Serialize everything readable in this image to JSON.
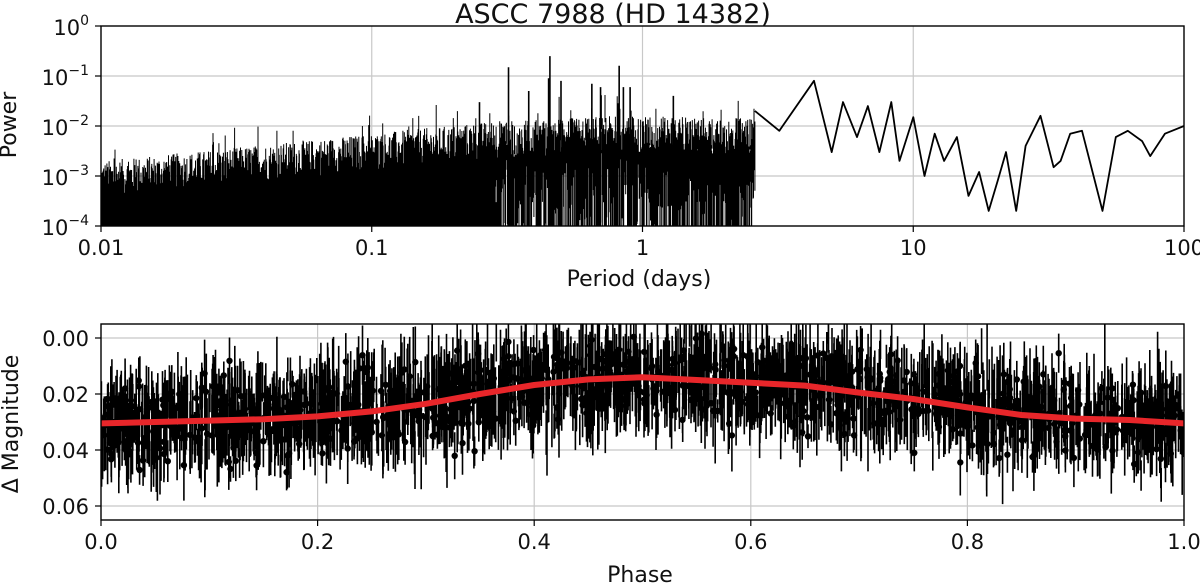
{
  "chart_data": [
    {
      "type": "line",
      "title": "ASCC 7988  (HD 14382)",
      "xlabel": "Period (days)",
      "ylabel": "Power",
      "xscale": "log",
      "yscale": "log",
      "xlim": [
        0.01,
        100
      ],
      "ylim": [
        0.0001,
        1
      ],
      "grid": true,
      "x_ticks": [
        "0.01",
        "0.1",
        "1",
        "10",
        "100"
      ],
      "y_ticks": [
        {
          "base": "10",
          "exp": "0"
        },
        {
          "base": "10",
          "exp": "−1"
        },
        {
          "base": "10",
          "exp": "−2"
        },
        {
          "base": "10",
          "exp": "−3"
        },
        {
          "base": "10",
          "exp": "−4"
        }
      ],
      "peaks": [
        {
          "period": 0.32,
          "power": 0.15
        },
        {
          "period": 0.455,
          "power": 0.25
        },
        {
          "period": 0.82,
          "power": 0.16
        },
        {
          "period": 0.25,
          "power": 0.03
        },
        {
          "period": 0.45,
          "power": 0.09
        },
        {
          "period": 0.5,
          "power": 0.08
        },
        {
          "period": 0.65,
          "power": 0.07
        },
        {
          "period": 0.9,
          "power": 0.06
        },
        {
          "period": 0.85,
          "power": 0.06
        },
        {
          "period": 0.38,
          "power": 0.05
        },
        {
          "period": 0.7,
          "power": 0.06
        },
        {
          "period": 1.3,
          "power": 0.04
        }
      ],
      "long_period_curve": [
        [
          2.6,
          0.02
        ],
        [
          3.2,
          0.008
        ],
        [
          4.3,
          0.08
        ],
        [
          5.0,
          0.003
        ],
        [
          5.5,
          0.03
        ],
        [
          6.2,
          0.006
        ],
        [
          6.8,
          0.025
        ],
        [
          7.5,
          0.003
        ],
        [
          8.3,
          0.03
        ],
        [
          8.9,
          0.002
        ],
        [
          10.0,
          0.015
        ],
        [
          11.0,
          0.001
        ],
        [
          12.0,
          0.007
        ],
        [
          13.0,
          0.002
        ],
        [
          14.5,
          0.006
        ],
        [
          16.0,
          0.0004
        ],
        [
          17.5,
          0.0012
        ],
        [
          19.0,
          0.0002
        ],
        [
          20.5,
          0.0008
        ],
        [
          22.0,
          0.003
        ],
        [
          24.0,
          0.0002
        ],
        [
          26.0,
          0.004
        ],
        [
          29.5,
          0.016
        ],
        [
          33.0,
          0.0015
        ],
        [
          35.0,
          0.002
        ],
        [
          38.0,
          0.007
        ],
        [
          42.0,
          0.008
        ],
        [
          50.0,
          0.0002
        ],
        [
          56.0,
          0.006
        ],
        [
          62.0,
          0.008
        ],
        [
          70.0,
          0.005
        ],
        [
          75.0,
          0.0025
        ],
        [
          85.0,
          0.007
        ],
        [
          100.0,
          0.01
        ]
      ]
    },
    {
      "type": "scatter",
      "xlabel": "Phase",
      "ylabel": "Δ Magnitude",
      "xlim": [
        0.0,
        1.0
      ],
      "ylim": [
        0.065,
        -0.005
      ],
      "y_inverted": true,
      "grid": true,
      "x_ticks": [
        "0.0",
        "0.2",
        "0.4",
        "0.6",
        "0.8",
        "1.0"
      ],
      "y_ticks": [
        "0.00",
        "0.02",
        "0.04",
        "0.06"
      ],
      "points_color": "#000000",
      "binned_curve_color": "#e8262a",
      "binned_curve": [
        [
          0.0,
          0.0305
        ],
        [
          0.05,
          0.03
        ],
        [
          0.1,
          0.0295
        ],
        [
          0.15,
          0.029
        ],
        [
          0.2,
          0.028
        ],
        [
          0.25,
          0.0262
        ],
        [
          0.3,
          0.0235
        ],
        [
          0.35,
          0.02
        ],
        [
          0.4,
          0.0168
        ],
        [
          0.45,
          0.0148
        ],
        [
          0.5,
          0.014
        ],
        [
          0.55,
          0.015
        ],
        [
          0.6,
          0.016
        ],
        [
          0.65,
          0.017
        ],
        [
          0.7,
          0.0195
        ],
        [
          0.75,
          0.0218
        ],
        [
          0.8,
          0.0248
        ],
        [
          0.85,
          0.0275
        ],
        [
          0.9,
          0.0288
        ],
        [
          0.95,
          0.0293
        ],
        [
          1.0,
          0.0305
        ]
      ]
    }
  ]
}
